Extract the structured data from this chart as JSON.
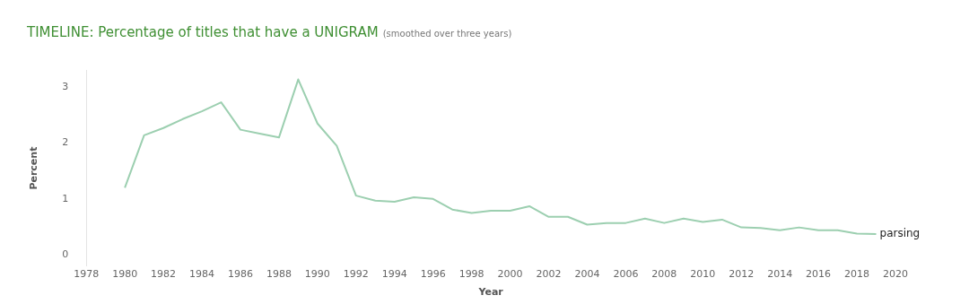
{
  "chart_data": {
    "type": "line",
    "title": "TIMELINE: Percentage of titles that have a UNIGRAM",
    "subtitle": "(smoothed over three years)",
    "xlabel": "Year",
    "ylabel": "Percent",
    "x": [
      1980,
      1981,
      1982,
      1983,
      1984,
      1985,
      1986,
      1987,
      1988,
      1989,
      1990,
      1991,
      1992,
      1993,
      1994,
      1995,
      1996,
      1997,
      1998,
      1999,
      2000,
      2001,
      2002,
      2003,
      2004,
      2005,
      2006,
      2007,
      2008,
      2009,
      2010,
      2011,
      2012,
      2013,
      2014,
      2015,
      2016,
      2017,
      2018,
      2019
    ],
    "series": [
      {
        "name": "parsing",
        "color": "#9ccfb0",
        "values": [
          1.2,
          2.14,
          2.27,
          2.43,
          2.57,
          2.73,
          2.24,
          2.17,
          2.1,
          3.14,
          2.35,
          1.95,
          1.06,
          0.97,
          0.95,
          1.03,
          1.0,
          0.81,
          0.75,
          0.79,
          0.79,
          0.87,
          0.68,
          0.68,
          0.54,
          0.57,
          0.57,
          0.65,
          0.57,
          0.65,
          0.59,
          0.63,
          0.49,
          0.48,
          0.44,
          0.49,
          0.44,
          0.44,
          0.38,
          0.37
        ]
      }
    ],
    "xlim": [
      1978,
      2020
    ],
    "xticks": [
      1978,
      1980,
      1982,
      1984,
      1986,
      1988,
      1990,
      1992,
      1994,
      1996,
      1998,
      2000,
      2002,
      2004,
      2006,
      2008,
      2010,
      2012,
      2014,
      2016,
      2018,
      2020
    ],
    "ylim": [
      -0.2,
      3.3
    ],
    "yticks": [
      0,
      1,
      2,
      3
    ],
    "grid": false,
    "legend": false
  }
}
